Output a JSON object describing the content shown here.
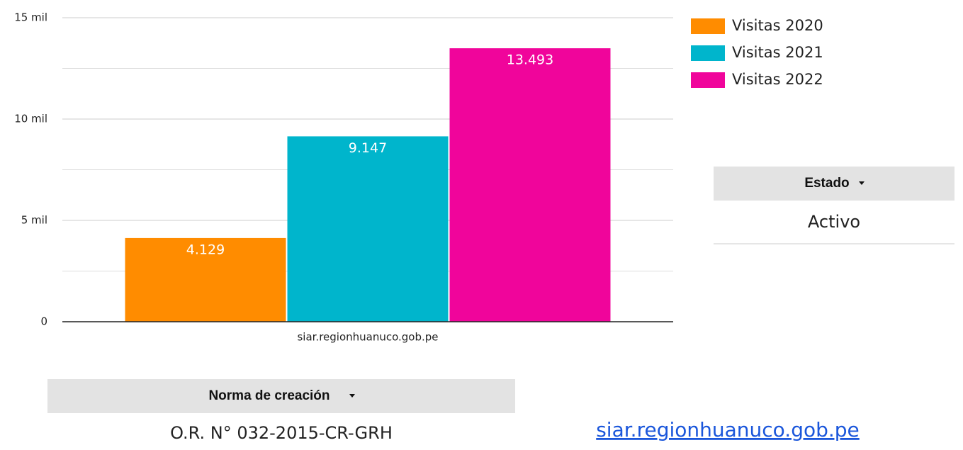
{
  "chart_data": {
    "type": "bar",
    "categories": [
      "siar.regionhuanuco.gob.pe"
    ],
    "series": [
      {
        "name": "Visitas 2020",
        "color": "#ff8c00",
        "values": [
          4129
        ],
        "value_labels": [
          "4.129"
        ]
      },
      {
        "name": "Visitas 2021",
        "color": "#00b5cc",
        "values": [
          9147
        ],
        "value_labels": [
          "9.147"
        ]
      },
      {
        "name": "Visitas 2022",
        "color": "#f0059b",
        "values": [
          13493
        ],
        "value_labels": [
          "13.493"
        ]
      }
    ],
    "ylim": [
      0,
      15000
    ],
    "yticks": [
      0,
      {
        "value": 5000,
        "label": "5 mil"
      },
      {
        "value": 10000,
        "label": "10 mil"
      },
      {
        "value": 15000,
        "label": "15 mil"
      }
    ],
    "minor_gridlines": [
      2500,
      7500,
      12500
    ],
    "grid": true,
    "legend": "right"
  },
  "estado_table": {
    "header": "Estado",
    "rows": [
      [
        "Activo"
      ]
    ]
  },
  "norma_table": {
    "header": "Norma de creación",
    "rows": [
      [
        "O.R. N° 032-2015-CR-GRH"
      ]
    ]
  },
  "link": "siar.regionhuanuco.gob.pe"
}
